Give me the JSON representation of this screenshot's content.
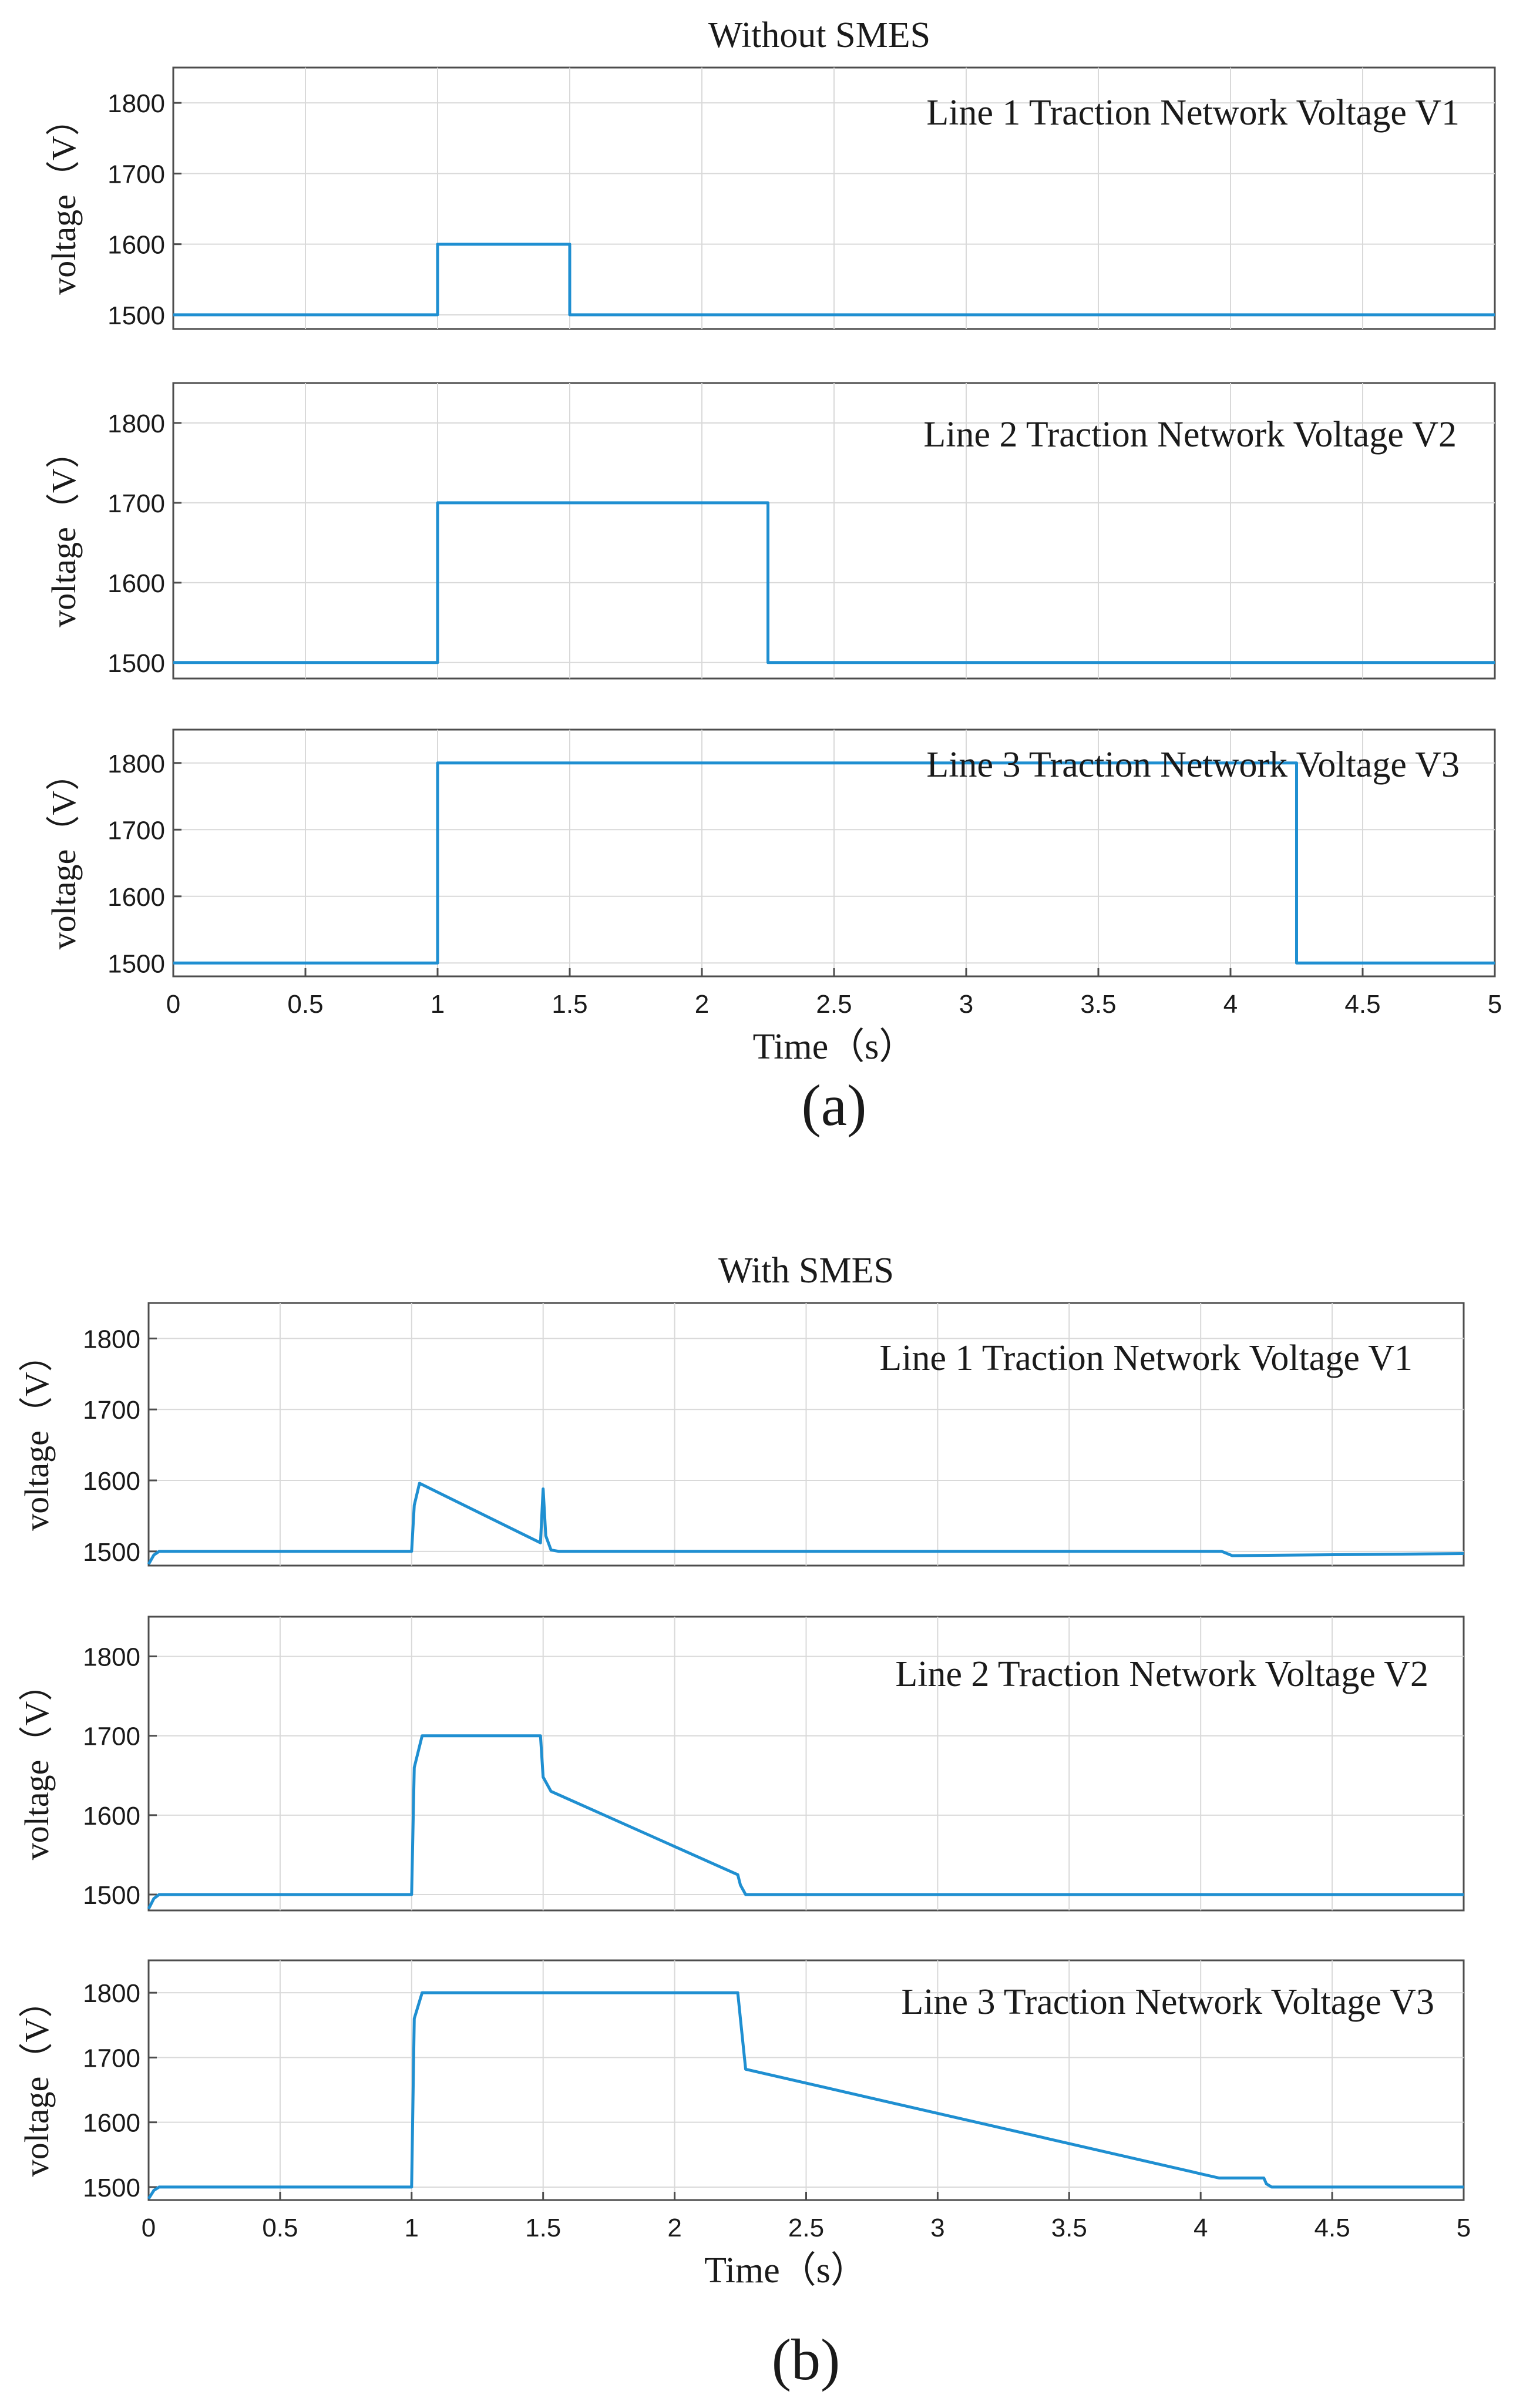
{
  "figure": {
    "colors": {
      "trace": "#1f8fd1",
      "grid": "#d9d9d9",
      "frame": "#4d4d4d",
      "text": "#1a1a1a"
    }
  },
  "chart_data": [
    {
      "type": "line",
      "group": "a",
      "group_title": "Without SMES",
      "caption": "(a)",
      "title": "Line 1 Traction Network Voltage V1",
      "xlabel": "",
      "ylabel": "voltage（V）",
      "xlim": [
        0,
        5
      ],
      "ylim": [
        1480,
        1850
      ],
      "yticks": [
        1500,
        1600,
        1700,
        1800
      ],
      "xticks": [],
      "series": [
        {
          "name": "V1",
          "x": [
            0,
            1,
            1,
            1.5,
            1.5,
            5
          ],
          "y": [
            1500,
            1500,
            1600,
            1600,
            1500,
            1500
          ]
        }
      ]
    },
    {
      "type": "line",
      "group": "a",
      "title": "Line 2 Traction Network Voltage V2",
      "xlabel": "",
      "ylabel": "voltage（V）",
      "xlim": [
        0,
        5
      ],
      "ylim": [
        1480,
        1850
      ],
      "yticks": [
        1500,
        1600,
        1700,
        1800
      ],
      "xticks": [],
      "series": [
        {
          "name": "V2",
          "x": [
            0,
            1,
            1,
            2.25,
            2.25,
            5
          ],
          "y": [
            1500,
            1500,
            1700,
            1700,
            1500,
            1500
          ]
        }
      ]
    },
    {
      "type": "line",
      "group": "a",
      "title": "Line 3 Traction Network Voltage V3",
      "xlabel": "Time（s）",
      "ylabel": "voltage（V）",
      "xlim": [
        0,
        5
      ],
      "ylim": [
        1480,
        1850
      ],
      "yticks": [
        1500,
        1600,
        1700,
        1800
      ],
      "xticks": [
        0,
        0.5,
        1,
        1.5,
        2,
        2.5,
        3,
        3.5,
        4,
        4.5,
        5
      ],
      "xtick_labels": [
        "0",
        "0.5",
        "1",
        "1.5",
        "2",
        "2.5",
        "3",
        "3.5",
        "4",
        "4.5",
        "5"
      ],
      "series": [
        {
          "name": "V3",
          "x": [
            0,
            1,
            1,
            4.25,
            4.25,
            5
          ],
          "y": [
            1500,
            1500,
            1800,
            1800,
            1500,
            1500
          ]
        }
      ]
    },
    {
      "type": "line",
      "group": "b",
      "group_title": "With SMES",
      "caption": "(b)",
      "title": "Line 1 Traction Network Voltage V1",
      "xlabel": "",
      "ylabel": "voltage（V）",
      "xlim": [
        0,
        5
      ],
      "ylim": [
        1480,
        1850
      ],
      "yticks": [
        1500,
        1600,
        1700,
        1800
      ],
      "xticks": [],
      "series": [
        {
          "name": "V1",
          "x": [
            0,
            0.02,
            0.04,
            1,
            1.01,
            1.03,
            1.49,
            1.5,
            1.51,
            1.53,
            1.56,
            4.08,
            4.12,
            5
          ],
          "y": [
            1482,
            1495,
            1500,
            1500,
            1565,
            1596,
            1512,
            1588,
            1522,
            1502,
            1500,
            1500,
            1494,
            1497
          ]
        }
      ]
    },
    {
      "type": "line",
      "group": "b",
      "title": "Line 2 Traction Network Voltage V2",
      "xlabel": "",
      "ylabel": "voltage（V）",
      "xlim": [
        0,
        5
      ],
      "ylim": [
        1480,
        1850
      ],
      "yticks": [
        1500,
        1600,
        1700,
        1800
      ],
      "xticks": [],
      "series": [
        {
          "name": "V2",
          "x": [
            0,
            0.02,
            0.04,
            1,
            1.01,
            1.04,
            1.49,
            1.5,
            1.53,
            2.24,
            2.25,
            2.27,
            5
          ],
          "y": [
            1482,
            1495,
            1500,
            1500,
            1660,
            1700,
            1700,
            1648,
            1630,
            1525,
            1512,
            1500,
            1500
          ]
        }
      ]
    },
    {
      "type": "line",
      "group": "b",
      "title": "Line 3 Traction Network Voltage V3",
      "xlabel": "Time（s）",
      "ylabel": "voltage（V）",
      "xlim": [
        0,
        5
      ],
      "ylim": [
        1480,
        1850
      ],
      "yticks": [
        1500,
        1600,
        1700,
        1800
      ],
      "xticks": [
        0,
        0.5,
        1,
        1.5,
        2,
        2.5,
        3,
        3.5,
        4,
        4.5,
        5
      ],
      "xtick_labels": [
        "0",
        "0.5",
        "1",
        "1.5",
        "2",
        "2.5",
        "3",
        "3.5",
        "4",
        "4.5",
        "5"
      ],
      "series": [
        {
          "name": "V3",
          "x": [
            0,
            0.02,
            0.04,
            1,
            1.01,
            1.04,
            2.24,
            2.25,
            2.27,
            4.07,
            4.09,
            4.24,
            4.25,
            4.27,
            5
          ],
          "y": [
            1482,
            1495,
            1500,
            1500,
            1760,
            1800,
            1800,
            1760,
            1682,
            1514,
            1514,
            1514,
            1505,
            1500,
            1500
          ]
        }
      ]
    }
  ]
}
